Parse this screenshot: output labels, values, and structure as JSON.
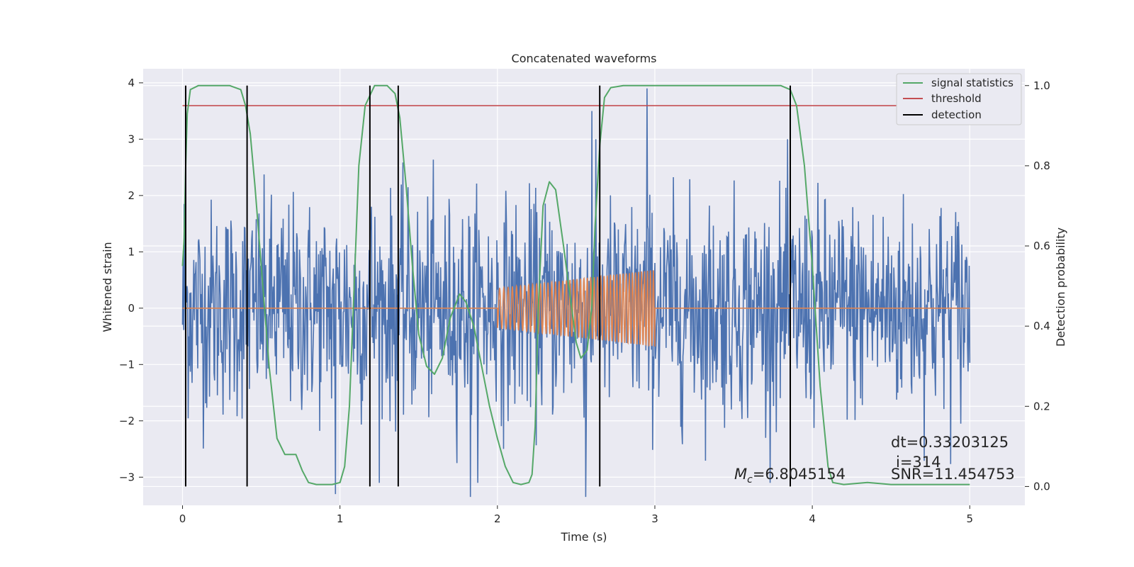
{
  "chart_data": {
    "type": "line",
    "title": "Concatenated waveforms",
    "xlabel": "Time (s)",
    "ylabel": "Whitened strain",
    "y2label": "Detection probability",
    "xlim": [
      -0.25,
      5.35
    ],
    "ylim": [
      -3.5,
      4.25
    ],
    "y2lim": [
      -0.047,
      1.042
    ],
    "xticks": [
      0,
      1,
      2,
      3,
      4,
      5
    ],
    "xtick_labels": [
      "0",
      "1",
      "2",
      "3",
      "4",
      "5"
    ],
    "yticks": [
      -3,
      -2,
      -1,
      0,
      1,
      2,
      3,
      4
    ],
    "ytick_labels": [
      "−3",
      "−2",
      "−1",
      "0",
      "1",
      "2",
      "3",
      "4"
    ],
    "y2ticks": [
      0.0,
      0.2,
      0.4,
      0.6,
      0.8,
      1.0
    ],
    "y2tick_labels": [
      "0.0",
      "0.2",
      "0.4",
      "0.6",
      "0.8",
      "1.0"
    ],
    "grid": true,
    "legend_position": "top-right",
    "colors": {
      "background": "#eaeaf2",
      "grid": "#ffffff",
      "strain": "#4c72b0",
      "template": "#dd8452",
      "signal": "#55a868",
      "threshold": "#c44e52",
      "detection": "#000000"
    },
    "strain_noise": {
      "x_range": [
        0,
        5
      ],
      "sigma": 0.95,
      "note_samples": 1400,
      "peaks": [
        {
          "x": 0.01,
          "y": 1.85
        },
        {
          "x": 1.2,
          "y": 1.8
        },
        {
          "x": 2.6,
          "y": 3.5
        },
        {
          "x": 2.95,
          "y": 3.9
        },
        {
          "x": 0.97,
          "y": -3.3
        },
        {
          "x": 1.83,
          "y": -3.35
        },
        {
          "x": 2.56,
          "y": -3.35
        }
      ]
    },
    "template": {
      "start": 2.0,
      "end": 3.0,
      "amp_start": 0.35,
      "amp_end": 0.68,
      "cycles": 45
    },
    "signal_statistics": [
      [
        0.0,
        0.55
      ],
      [
        0.01,
        0.62
      ],
      [
        0.02,
        0.8
      ],
      [
        0.03,
        0.93
      ],
      [
        0.05,
        0.99
      ],
      [
        0.1,
        1.0
      ],
      [
        0.3,
        1.0
      ],
      [
        0.37,
        0.99
      ],
      [
        0.4,
        0.95
      ],
      [
        0.43,
        0.88
      ],
      [
        0.46,
        0.75
      ],
      [
        0.5,
        0.55
      ],
      [
        0.55,
        0.3
      ],
      [
        0.6,
        0.12
      ],
      [
        0.65,
        0.08
      ],
      [
        0.68,
        0.08
      ],
      [
        0.72,
        0.08
      ],
      [
        0.76,
        0.04
      ],
      [
        0.8,
        0.01
      ],
      [
        0.85,
        0.005
      ],
      [
        0.95,
        0.005
      ],
      [
        1.0,
        0.01
      ],
      [
        1.03,
        0.05
      ],
      [
        1.06,
        0.2
      ],
      [
        1.09,
        0.5
      ],
      [
        1.12,
        0.8
      ],
      [
        1.16,
        0.95
      ],
      [
        1.22,
        1.0
      ],
      [
        1.3,
        1.0
      ],
      [
        1.35,
        0.98
      ],
      [
        1.38,
        0.92
      ],
      [
        1.42,
        0.75
      ],
      [
        1.46,
        0.55
      ],
      [
        1.5,
        0.38
      ],
      [
        1.55,
        0.3
      ],
      [
        1.6,
        0.28
      ],
      [
        1.65,
        0.32
      ],
      [
        1.7,
        0.42
      ],
      [
        1.76,
        0.48
      ],
      [
        1.8,
        0.46
      ],
      [
        1.85,
        0.4
      ],
      [
        1.9,
        0.3
      ],
      [
        1.95,
        0.2
      ],
      [
        2.0,
        0.12
      ],
      [
        2.05,
        0.05
      ],
      [
        2.1,
        0.01
      ],
      [
        2.15,
        0.005
      ],
      [
        2.2,
        0.01
      ],
      [
        2.22,
        0.03
      ],
      [
        2.24,
        0.15
      ],
      [
        2.26,
        0.45
      ],
      [
        2.29,
        0.7
      ],
      [
        2.33,
        0.76
      ],
      [
        2.37,
        0.74
      ],
      [
        2.42,
        0.6
      ],
      [
        2.47,
        0.45
      ],
      [
        2.5,
        0.36
      ],
      [
        2.53,
        0.32
      ],
      [
        2.57,
        0.34
      ],
      [
        2.6,
        0.45
      ],
      [
        2.62,
        0.65
      ],
      [
        2.65,
        0.85
      ],
      [
        2.68,
        0.97
      ],
      [
        2.72,
        0.995
      ],
      [
        2.8,
        1.0
      ],
      [
        3.5,
        1.0
      ],
      [
        3.8,
        1.0
      ],
      [
        3.86,
        0.99
      ],
      [
        3.9,
        0.95
      ],
      [
        3.95,
        0.8
      ],
      [
        4.0,
        0.55
      ],
      [
        4.05,
        0.25
      ],
      [
        4.1,
        0.05
      ],
      [
        4.13,
        0.01
      ],
      [
        4.2,
        0.005
      ],
      [
        4.35,
        0.01
      ],
      [
        4.5,
        0.005
      ],
      [
        5.0,
        0.005
      ]
    ],
    "threshold": {
      "y": 0.95,
      "x_range": [
        0,
        5.05
      ]
    },
    "detections": [
      0.02,
      0.41,
      1.19,
      1.37,
      2.65,
      3.86
    ],
    "legend": [
      "signal statistics",
      "threshold",
      "detection"
    ],
    "annotations": {
      "mc_label": "=6.8045154",
      "dt": "dt=0.33203125",
      "i": "i=314",
      "snr": "SNR=11.454753"
    }
  }
}
